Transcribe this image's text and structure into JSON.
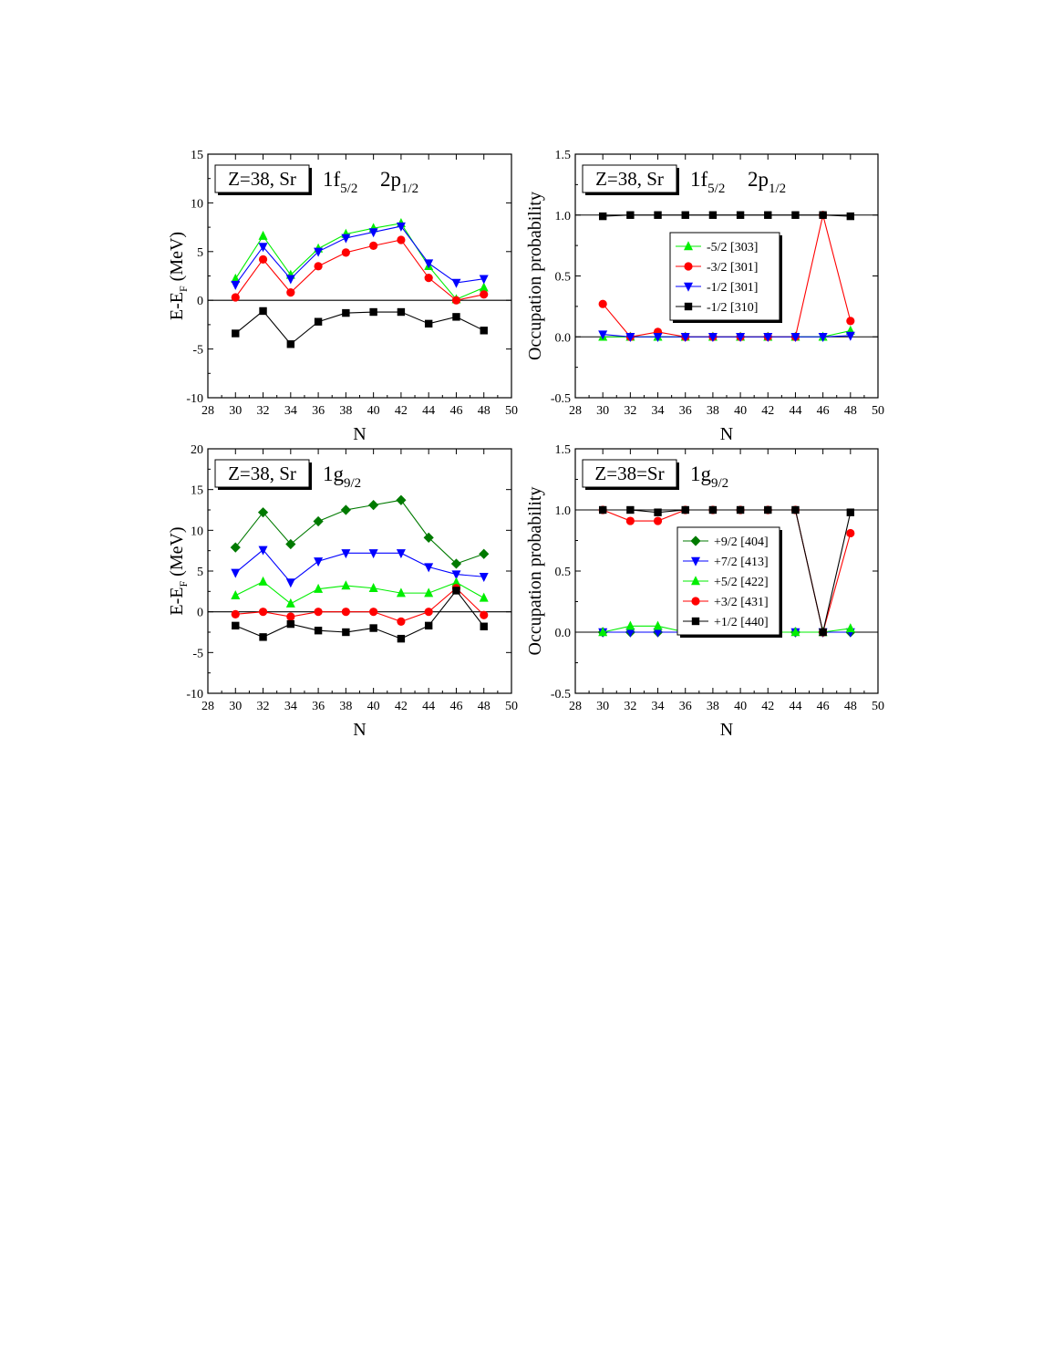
{
  "chart_data": [
    {
      "type": "line",
      "panel": "top-left",
      "xlabel": "N",
      "ylabel": "E-E",
      "ylabel_sub": "F",
      "ylabel_unit": " (MeV)",
      "xlim": [
        28,
        50
      ],
      "ylim": [
        -10,
        15
      ],
      "xticks": [
        28,
        30,
        32,
        34,
        36,
        38,
        40,
        42,
        44,
        46,
        48,
        50
      ],
      "yticks": [
        -10,
        -5,
        0,
        5,
        10,
        15
      ],
      "ytick_decimals": 0,
      "reference_line": 0,
      "box_label": "Z=38, Sr",
      "orbital_label": [
        {
          "main": "1f",
          "sub": "5/2"
        },
        {
          "main": "2p",
          "sub": "1/2"
        }
      ],
      "series": [
        {
          "color": "#00ee00",
          "marker": "triangle-up",
          "x": [
            30,
            32,
            34,
            36,
            38,
            40,
            42,
            44,
            46,
            48
          ],
          "y": [
            2.2,
            6.6,
            2.6,
            5.3,
            6.8,
            7.4,
            7.9,
            3.5,
            0.1,
            1.3
          ]
        },
        {
          "color": "#0000ff",
          "marker": "triangle-down",
          "x": [
            30,
            32,
            34,
            36,
            38,
            40,
            42,
            44,
            46,
            48
          ],
          "y": [
            1.6,
            5.5,
            2.2,
            5.0,
            6.4,
            7.0,
            7.6,
            3.8,
            1.8,
            2.2
          ]
        },
        {
          "color": "#ff0000",
          "marker": "circle",
          "x": [
            30,
            32,
            34,
            36,
            38,
            40,
            42,
            44,
            46,
            48
          ],
          "y": [
            0.3,
            4.2,
            0.8,
            3.5,
            4.9,
            5.6,
            6.2,
            2.3,
            0.0,
            0.6
          ]
        },
        {
          "color": "#000000",
          "marker": "square",
          "x": [
            30,
            32,
            34,
            36,
            38,
            40,
            42,
            44,
            46,
            48
          ],
          "y": [
            -3.4,
            -1.1,
            -4.5,
            -2.2,
            -1.3,
            -1.2,
            -1.2,
            -2.4,
            -1.7,
            -3.1
          ]
        }
      ]
    },
    {
      "type": "line",
      "panel": "top-right",
      "xlabel": "N",
      "ylabel": "Occupation probability",
      "xlim": [
        28,
        50
      ],
      "ylim": [
        -0.5,
        1.5
      ],
      "xticks": [
        28,
        30,
        32,
        34,
        36,
        38,
        40,
        42,
        44,
        46,
        48,
        50
      ],
      "yticks": [
        -0.5,
        0.0,
        0.5,
        1.0,
        1.5
      ],
      "ytick_decimals": 1,
      "reference_lines": [
        0,
        1
      ],
      "box_label": "Z=38, Sr",
      "orbital_label": [
        {
          "main": "1f",
          "sub": "5/2"
        },
        {
          "main": "2p",
          "sub": "1/2"
        }
      ],
      "legend_position": "upper-center",
      "series": [
        {
          "name": "-5/2 [303]",
          "color": "#00ee00",
          "marker": "triangle-up",
          "x": [
            30,
            32,
            34,
            36,
            38,
            40,
            42,
            44,
            46,
            48
          ],
          "y": [
            0.0,
            0.0,
            0.0,
            0.0,
            0.0,
            0.0,
            0.0,
            0.0,
            0.0,
            0.05
          ]
        },
        {
          "name": "-3/2 [301]",
          "color": "#ff0000",
          "marker": "circle",
          "x": [
            30,
            32,
            34,
            36,
            38,
            40,
            42,
            44,
            46,
            48
          ],
          "y": [
            0.27,
            0.0,
            0.04,
            0.0,
            0.0,
            0.0,
            0.0,
            0.0,
            1.0,
            0.13
          ]
        },
        {
          "name": "-1/2 [301]",
          "color": "#0000ff",
          "marker": "triangle-down",
          "x": [
            30,
            32,
            34,
            36,
            38,
            40,
            42,
            44,
            46,
            48
          ],
          "y": [
            0.02,
            0.0,
            0.0,
            0.0,
            0.0,
            0.0,
            0.0,
            0.0,
            0.0,
            0.01
          ]
        },
        {
          "name": "-1/2 [310]",
          "color": "#000000",
          "marker": "square",
          "x": [
            30,
            32,
            34,
            36,
            38,
            40,
            42,
            44,
            46,
            48
          ],
          "y": [
            0.99,
            1.0,
            1.0,
            1.0,
            1.0,
            1.0,
            1.0,
            1.0,
            1.0,
            0.99
          ]
        }
      ]
    },
    {
      "type": "line",
      "panel": "bottom-left",
      "xlabel": "N",
      "ylabel": "E-E",
      "ylabel_sub": "F",
      "ylabel_unit": " (MeV)",
      "xlim": [
        28,
        50
      ],
      "ylim": [
        -10,
        20
      ],
      "xticks": [
        28,
        30,
        32,
        34,
        36,
        38,
        40,
        42,
        44,
        46,
        48,
        50
      ],
      "yticks": [
        -10,
        -5,
        0,
        5,
        10,
        15,
        20
      ],
      "ytick_decimals": 0,
      "reference_line": 0,
      "box_label": "Z=38, Sr",
      "orbital_label": [
        {
          "main": "1g",
          "sub": "9/2"
        }
      ],
      "series": [
        {
          "color": "#007a00",
          "marker": "diamond",
          "x": [
            30,
            32,
            34,
            36,
            38,
            40,
            42,
            44,
            46,
            48
          ],
          "y": [
            7.9,
            12.2,
            8.3,
            11.1,
            12.5,
            13.1,
            13.7,
            9.1,
            5.9,
            7.1
          ]
        },
        {
          "color": "#0000ff",
          "marker": "triangle-down",
          "x": [
            30,
            32,
            34,
            36,
            38,
            40,
            42,
            44,
            46,
            48
          ],
          "y": [
            4.8,
            7.6,
            3.6,
            6.2,
            7.2,
            7.2,
            7.2,
            5.5,
            4.6,
            4.3
          ]
        },
        {
          "color": "#00ee00",
          "marker": "triangle-up",
          "x": [
            30,
            32,
            34,
            36,
            38,
            40,
            42,
            44,
            46,
            48
          ],
          "y": [
            2.0,
            3.7,
            1.0,
            2.8,
            3.2,
            2.9,
            2.3,
            2.3,
            3.6,
            1.7
          ]
        },
        {
          "color": "#ff0000",
          "marker": "circle",
          "x": [
            30,
            32,
            34,
            36,
            38,
            40,
            42,
            44,
            46,
            48
          ],
          "y": [
            -0.3,
            0.0,
            -0.6,
            0.0,
            0.0,
            0.0,
            -1.2,
            0.0,
            2.9,
            -0.4
          ]
        },
        {
          "color": "#000000",
          "marker": "square",
          "x": [
            30,
            32,
            34,
            36,
            38,
            40,
            42,
            44,
            46,
            48
          ],
          "y": [
            -1.7,
            -3.1,
            -1.5,
            -2.3,
            -2.5,
            -2.0,
            -3.3,
            -1.7,
            2.6,
            -1.8
          ]
        }
      ]
    },
    {
      "type": "line",
      "panel": "bottom-right",
      "xlabel": "N",
      "ylabel": "Occupation probability",
      "xlim": [
        28,
        50
      ],
      "ylim": [
        -0.5,
        1.5
      ],
      "xticks": [
        28,
        30,
        32,
        34,
        36,
        38,
        40,
        42,
        44,
        46,
        48,
        50
      ],
      "yticks": [
        -0.5,
        0.0,
        0.5,
        1.0,
        1.5
      ],
      "ytick_decimals": 1,
      "reference_lines": [
        0,
        1
      ],
      "box_label": "Z=38=Sr",
      "orbital_label": [
        {
          "main": "1g",
          "sub": "9/2"
        }
      ],
      "legend_position": "right",
      "series": [
        {
          "name": "+9/2 [404]",
          "color": "#007a00",
          "marker": "diamond",
          "x": [
            30,
            32,
            34,
            36,
            38,
            40,
            42,
            44,
            46,
            48
          ],
          "y": [
            0.0,
            0.0,
            0.0,
            0.0,
            0.0,
            0.0,
            0.0,
            0.0,
            0.0,
            0.0
          ]
        },
        {
          "name": "+7/2 [413]",
          "color": "#0000ff",
          "marker": "triangle-down",
          "x": [
            30,
            32,
            34,
            36,
            38,
            40,
            42,
            44,
            46,
            48
          ],
          "y": [
            0.0,
            0.0,
            0.0,
            0.0,
            0.0,
            0.0,
            0.0,
            0.0,
            0.0,
            0.0
          ]
        },
        {
          "name": "+5/2 [422]",
          "color": "#00ee00",
          "marker": "triangle-up",
          "x": [
            30,
            32,
            34,
            36,
            38,
            40,
            42,
            44,
            46,
            48
          ],
          "y": [
            0.0,
            0.05,
            0.05,
            0.0,
            0.0,
            0.0,
            0.0,
            0.0,
            0.0,
            0.03
          ]
        },
        {
          "name": "+3/2 [431]",
          "color": "#ff0000",
          "marker": "circle",
          "x": [
            30,
            32,
            34,
            36,
            38,
            40,
            42,
            44,
            46,
            48
          ],
          "y": [
            1.0,
            0.91,
            0.91,
            1.0,
            1.0,
            1.0,
            1.0,
            1.0,
            0.0,
            0.81
          ]
        },
        {
          "name": "+1/2 [440]",
          "color": "#000000",
          "marker": "square",
          "x": [
            30,
            32,
            34,
            36,
            38,
            40,
            42,
            44,
            46,
            48
          ],
          "y": [
            1.0,
            1.0,
            0.98,
            1.0,
            1.0,
            1.0,
            1.0,
            1.0,
            0.0,
            0.98
          ]
        }
      ]
    }
  ]
}
